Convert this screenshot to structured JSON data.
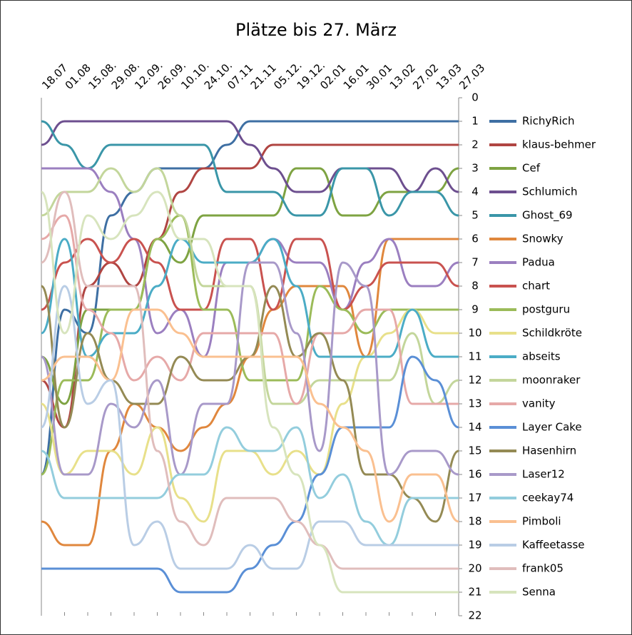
{
  "chart_data": {
    "type": "line",
    "title": "Plätze bis 27. März",
    "categories": [
      "18.07",
      "01.08",
      "15.08.",
      "29.08.",
      "12.09.",
      "26.09.",
      "10.10.",
      "24.10.",
      "07.11",
      "21.11",
      "05.12.",
      "19.12.",
      "02.01",
      "16.01",
      "30.01",
      "13.02",
      "27.02",
      "13.03",
      "27.03"
    ],
    "ylim": [
      0,
      22
    ],
    "yticks": [
      0,
      1,
      2,
      3,
      4,
      5,
      6,
      7,
      8,
      9,
      10,
      11,
      12,
      13,
      14,
      15,
      16,
      17,
      18,
      19,
      20,
      21,
      22
    ],
    "y_reversed": true,
    "legend": "right",
    "series": [
      {
        "name": "RichyRich",
        "color": "#3e6fa3",
        "values": [
          16,
          9,
          10,
          5,
          4,
          3,
          3,
          3,
          2,
          1,
          1,
          1,
          1,
          1,
          1,
          1,
          1,
          1,
          1
        ]
      },
      {
        "name": "klaus-behmer",
        "color": "#b04542",
        "values": [
          12,
          14,
          8,
          7,
          8,
          6,
          4,
          3,
          3,
          3,
          2,
          2,
          2,
          2,
          2,
          2,
          2,
          2,
          2
        ]
      },
      {
        "name": "Cef",
        "color": "#7ea342",
        "values": [
          11,
          13,
          9,
          9,
          9,
          6,
          7,
          5,
          5,
          5,
          5,
          3,
          3,
          5,
          5,
          4,
          4,
          4,
          3
        ]
      },
      {
        "name": "Schlumich",
        "color": "#6d4f8f",
        "values": [
          2,
          1,
          1,
          1,
          1,
          1,
          1,
          1,
          1,
          2,
          3,
          4,
          4,
          3,
          3,
          3,
          4,
          3,
          4
        ]
      },
      {
        "name": "Ghost_69",
        "color": "#3a96a8",
        "values": [
          1,
          2,
          3,
          2,
          2,
          2,
          2,
          2,
          4,
          4,
          4,
          5,
          5,
          3,
          3,
          5,
          4,
          4,
          5
        ]
      },
      {
        "name": "Snowky",
        "color": "#e0873d",
        "values": [
          18,
          19,
          19,
          15,
          13,
          14,
          15,
          14,
          13,
          11,
          9,
          8,
          8,
          8,
          11,
          6,
          6,
          6,
          6
        ]
      },
      {
        "name": "Padua",
        "color": "#9b7fc0",
        "values": [
          3,
          3,
          3,
          4,
          6,
          10,
          9,
          11,
          7,
          7,
          6,
          7,
          7,
          9,
          7,
          6,
          8,
          8,
          7
        ]
      },
      {
        "name": "chart",
        "color": "#c9524f",
        "values": [
          9,
          7,
          6,
          7,
          6,
          7,
          9,
          9,
          6,
          6,
          9,
          6,
          6,
          9,
          8,
          7,
          7,
          7,
          8
        ]
      },
      {
        "name": "postguru",
        "color": "#9bbb59",
        "values": [
          16,
          12,
          12,
          9,
          9,
          6,
          5,
          9,
          9,
          12,
          12,
          12,
          8,
          9,
          10,
          9,
          9,
          9,
          9
        ]
      },
      {
        "name": "Schildkröte",
        "color": "#e8e08a",
        "values": [
          13,
          16,
          15,
          15,
          16,
          14,
          17,
          18,
          15,
          15,
          16,
          15,
          16,
          13,
          11,
          10,
          9,
          10,
          10
        ]
      },
      {
        "name": "abseits",
        "color": "#4bacc6",
        "values": [
          10,
          6,
          11,
          10,
          10,
          8,
          6,
          7,
          7,
          7,
          6,
          8,
          11,
          11,
          11,
          11,
          9,
          11,
          11
        ]
      },
      {
        "name": "moonraker",
        "color": "#c3d69b",
        "values": [
          5,
          4,
          4,
          3,
          4,
          3,
          5,
          8,
          8,
          8,
          13,
          13,
          12,
          12,
          12,
          12,
          10,
          13,
          12
        ]
      },
      {
        "name": "vanity",
        "color": "#e6a9a8",
        "values": [
          6,
          5,
          9,
          10,
          12,
          11,
          12,
          10,
          10,
          10,
          10,
          13,
          10,
          10,
          9,
          9,
          13,
          13,
          13
        ]
      },
      {
        "name": "Layer Cake",
        "color": "#5a8fd6",
        "values": [
          20,
          20,
          20,
          20,
          20,
          20,
          21,
          21,
          21,
          20,
          19,
          18,
          16,
          14,
          14,
          14,
          11,
          12,
          14
        ]
      },
      {
        "name": "Hasenhirn",
        "color": "#948a54",
        "values": [
          8,
          14,
          10,
          12,
          13,
          13,
          11,
          12,
          12,
          11,
          8,
          11,
          10,
          12,
          16,
          16,
          17,
          18,
          15
        ]
      },
      {
        "name": "Laser12",
        "color": "#a899c9",
        "values": [
          11,
          16,
          16,
          13,
          14,
          12,
          16,
          13,
          13,
          7,
          7,
          10,
          15,
          7,
          8,
          16,
          15,
          15,
          16
        ]
      },
      {
        "name": "ceekay74",
        "color": "#93cddd",
        "values": [
          15,
          17,
          17,
          17,
          17,
          17,
          16,
          16,
          14,
          15,
          15,
          14,
          17,
          16,
          18,
          19,
          17,
          17,
          17
        ]
      },
      {
        "name": "Pimboli",
        "color": "#fac090",
        "values": [
          12,
          11,
          11,
          12,
          9,
          9,
          10,
          11,
          11,
          11,
          11,
          11,
          13,
          14,
          15,
          18,
          16,
          16,
          18
        ]
      },
      {
        "name": "Kaffeetasse",
        "color": "#b9cde5",
        "values": [
          14,
          8,
          13,
          12,
          19,
          18,
          20,
          20,
          20,
          19,
          20,
          20,
          18,
          18,
          19,
          19,
          19,
          19,
          19
        ]
      },
      {
        "name": "frank05",
        "color": "#e0bdbc",
        "values": [
          7,
          4,
          8,
          8,
          8,
          15,
          18,
          19,
          17,
          17,
          17,
          18,
          19,
          20,
          20,
          20,
          20,
          20,
          20
        ]
      },
      {
        "name": "Senna",
        "color": "#d7e4bd",
        "values": [
          4,
          10,
          5,
          6,
          5,
          4,
          6,
          6,
          8,
          8,
          14,
          16,
          19,
          21,
          21,
          21,
          21,
          21,
          21
        ]
      }
    ]
  }
}
